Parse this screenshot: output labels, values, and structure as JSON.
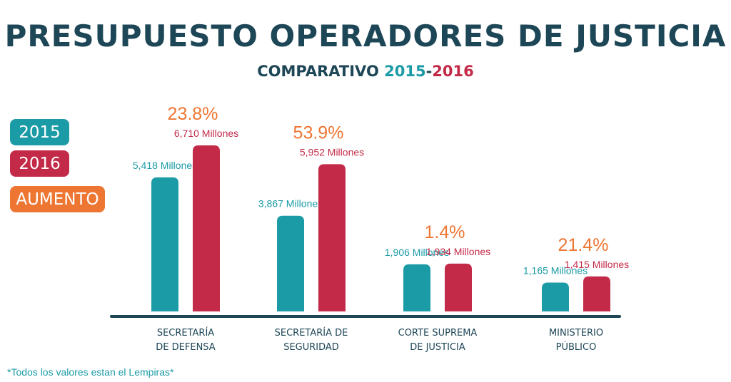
{
  "title": "PRESUPUESTO OPERADORES DE JUSTICIA",
  "subtitle": {
    "prefix": "COMPARATIVO",
    "year_a": "2015",
    "separator": "-",
    "year_b": "2016"
  },
  "legend": {
    "items": [
      {
        "label": "2015",
        "color": "#1b9ba6"
      },
      {
        "label": "2016",
        "color": "#c32a48"
      },
      {
        "label": "AUMENTO",
        "color": "#ee7633"
      }
    ]
  },
  "footnote": "*Todos los valores estan el Lempiras*",
  "chart_data": {
    "type": "bar",
    "categories": [
      [
        "SECRETARÍA",
        "DE DEFENSA"
      ],
      [
        "SECRETARÍA DE",
        "SEGURIDAD"
      ],
      [
        "CORTE SUPREMA",
        "DE JUSTICIA"
      ],
      [
        "MINISTERIO",
        "PÚBLICO"
      ]
    ],
    "series": [
      {
        "name": "2015",
        "color": "#1b9ba6",
        "values": [
          5418,
          3867,
          1906,
          1165
        ],
        "labels": [
          "5,418 Millones",
          "3,867 Millones",
          "1,906 Millones",
          "1,165 Millones"
        ]
      },
      {
        "name": "2016",
        "color": "#c32a48",
        "values": [
          6710,
          5952,
          1934,
          1415
        ],
        "labels": [
          "6,710 Millones",
          "5,952 Millones",
          "1,934 Millones",
          "1,415 Millones"
        ]
      }
    ],
    "increase": {
      "name": "AUMENTO",
      "color": "#ee7633",
      "values": [
        23.8,
        53.9,
        1.4,
        21.4
      ],
      "labels": [
        "23.8%",
        "53.9%",
        "1.4%",
        "21.4%"
      ]
    },
    "ylim": [
      0,
      6710
    ],
    "baseline_color": "#1d4656",
    "category_label_color": "#1d4656",
    "grid": false
  }
}
